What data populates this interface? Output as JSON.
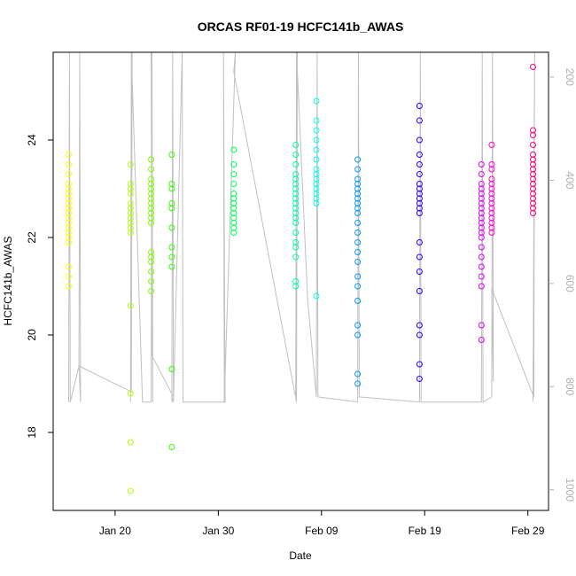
{
  "chart_data": {
    "type": "scatter",
    "title": "ORCAS RF01-19 HCFC141b_AWAS",
    "xlabel": "Date",
    "ylabel": "HCFC141b_AWAS",
    "x_axis_type": "date",
    "xlim": [
      "2016-01-14",
      "2016-03-02"
    ],
    "ylim": [
      16.4,
      25.8
    ],
    "y2lim": [
      1040,
      152
    ],
    "x_ticks": [
      {
        "date": "2016-01-20",
        "label": "Jan 20"
      },
      {
        "date": "2016-01-30",
        "label": "Jan 30"
      },
      {
        "date": "2016-02-09",
        "label": "Feb 09"
      },
      {
        "date": "2016-02-19",
        "label": "Feb 19"
      },
      {
        "date": "2016-02-29",
        "label": "Feb 29"
      }
    ],
    "y_ticks": [
      18,
      20,
      22,
      24
    ],
    "y2_ticks": [
      200,
      400,
      600,
      800,
      1000
    ],
    "grid": false,
    "colors": {
      "axis": "#000000",
      "right_axis": "#b0b0b0",
      "pressure_trace": "#c0c0c0"
    },
    "series": [
      {
        "date": "2016-01-15",
        "color": "#ffff00",
        "values": [
          23.7,
          23.5,
          23.3,
          23.1,
          23.0,
          22.9,
          22.8,
          22.7,
          22.6,
          22.5,
          22.4,
          22.3,
          22.2,
          22.1,
          22.0,
          21.9,
          21.4,
          21.2,
          21.0,
          22.6
        ]
      },
      {
        "date": "2016-01-21",
        "color": "#b3ff00",
        "values": [
          23.5,
          23.1,
          23.0,
          22.9,
          22.7,
          22.6,
          22.5,
          22.4,
          22.3,
          22.2,
          22.1,
          20.6,
          18.8,
          17.8,
          16.8
        ]
      },
      {
        "date": "2016-01-23",
        "color": "#80ff00",
        "values": [
          23.6,
          23.4,
          23.2,
          23.1,
          23.0,
          22.9,
          22.8,
          22.7,
          22.6,
          22.5,
          22.4,
          22.3,
          21.7,
          21.6,
          21.5,
          21.3,
          21.1,
          20.9
        ]
      },
      {
        "date": "2016-01-25",
        "color": "#33ff00",
        "values": [
          23.7,
          23.1,
          23.0,
          22.7,
          22.6,
          22.2,
          21.8,
          21.6,
          21.4,
          19.3,
          17.7
        ]
      },
      {
        "date": "2016-01-31",
        "color": "#00ff55",
        "values": [
          23.8,
          23.5,
          23.3,
          23.1,
          22.9,
          22.8,
          22.7,
          22.6,
          22.5,
          22.4,
          22.3,
          22.2,
          22.1
        ]
      },
      {
        "date": "2016-02-06",
        "color": "#00ffaa",
        "values": [
          23.9,
          23.7,
          23.5,
          23.3,
          23.2,
          23.1,
          23.0,
          22.9,
          22.8,
          22.7,
          22.6,
          22.5,
          22.4,
          22.3,
          22.1,
          21.9,
          21.8,
          21.6,
          21.1,
          21.0
        ]
      },
      {
        "date": "2016-02-08",
        "color": "#00ffee",
        "values": [
          24.8,
          24.4,
          24.2,
          24.0,
          23.8,
          23.6,
          23.4,
          23.3,
          23.2,
          23.1,
          23.0,
          22.9,
          22.8,
          22.7,
          20.8
        ]
      },
      {
        "date": "2016-02-12",
        "color": "#0099ff",
        "values": [
          23.6,
          23.4,
          23.2,
          23.1,
          23.0,
          22.9,
          22.8,
          22.7,
          22.6,
          22.5,
          22.3,
          22.1,
          21.9,
          21.7,
          21.5,
          21.2,
          21.0,
          20.7,
          20.2,
          20.0,
          19.2,
          19.0
        ]
      },
      {
        "date": "2016-02-18",
        "color": "#2200ff",
        "values": [
          24.7,
          24.4,
          24.0,
          23.7,
          23.5,
          23.3,
          23.1,
          23.0,
          22.9,
          22.8,
          22.7,
          22.6,
          22.5,
          21.9,
          21.6,
          21.3,
          20.9,
          20.2,
          20.0,
          19.4,
          19.1
        ]
      },
      {
        "date": "2016-02-24",
        "color": "#dd00ff",
        "values": [
          23.5,
          23.3,
          23.1,
          23.0,
          22.9,
          22.8,
          22.7,
          22.6,
          22.5,
          22.4,
          22.3,
          22.2,
          22.1,
          22.0,
          21.8,
          21.6,
          21.4,
          21.2,
          21.0,
          20.2,
          19.9
        ]
      },
      {
        "date": "2016-02-25",
        "color": "#ff00cc",
        "values": [
          23.9,
          23.5,
          23.4,
          23.2,
          23.1,
          23.0,
          22.9,
          22.8,
          22.7,
          22.6,
          22.5,
          22.4,
          22.3,
          22.2,
          22.1
        ]
      },
      {
        "date": "2016-02-29",
        "color": "#ff0080",
        "values": [
          25.5,
          24.2,
          24.1,
          23.9,
          23.7,
          23.6,
          23.5,
          23.4,
          23.3,
          23.2,
          23.1,
          23.0,
          22.9,
          22.8,
          22.7,
          22.6,
          22.5
        ]
      }
    ],
    "pressure_trace": {
      "color": "#c0c0c0",
      "points": [
        [
          "2016-01-15",
          830
        ],
        [
          "2016-01-15",
          152
        ],
        [
          "2016-01-15",
          830
        ],
        [
          "2016-01-16",
          760
        ],
        [
          "2016-01-16",
          152
        ],
        [
          "2016-01-16",
          830
        ],
        [
          "2016-01-16",
          760
        ],
        [
          "2016-01-21",
          810
        ],
        [
          "2016-01-21",
          152
        ],
        [
          "2016-01-21",
          830
        ],
        [
          "2016-01-21",
          152
        ],
        [
          "2016-01-22",
          830
        ],
        [
          "2016-01-23",
          830
        ],
        [
          "2016-01-23",
          152
        ],
        [
          "2016-01-23",
          830
        ],
        [
          "2016-01-23",
          152
        ],
        [
          "2016-01-23",
          740
        ],
        [
          "2016-01-25",
          820
        ],
        [
          "2016-01-25",
          830
        ],
        [
          "2016-01-25",
          152
        ],
        [
          "2016-01-25",
          830
        ],
        [
          "2016-01-26",
          152
        ],
        [
          "2016-01-26",
          830
        ],
        [
          "2016-01-30",
          830
        ],
        [
          "2016-01-30",
          152
        ],
        [
          "2016-01-30",
          830
        ],
        [
          "2016-01-31",
          152
        ],
        [
          "2016-01-31",
          190
        ],
        [
          "2016-02-06",
          830
        ],
        [
          "2016-02-06",
          152
        ],
        [
          "2016-02-06",
          820
        ],
        [
          "2016-02-06",
          152
        ],
        [
          "2016-02-07",
          630
        ],
        [
          "2016-02-08",
          820
        ],
        [
          "2016-02-08",
          152
        ],
        [
          "2016-02-08",
          820
        ],
        [
          "2016-02-12",
          830
        ],
        [
          "2016-02-12",
          152
        ],
        [
          "2016-02-12",
          820
        ],
        [
          "2016-02-18",
          830
        ],
        [
          "2016-02-18",
          152
        ],
        [
          "2016-02-18",
          830
        ],
        [
          "2016-02-24",
          830
        ],
        [
          "2016-02-24",
          152
        ],
        [
          "2016-02-24",
          830
        ],
        [
          "2016-02-25",
          820
        ],
        [
          "2016-02-25",
          152
        ],
        [
          "2016-02-25",
          790
        ],
        [
          "2016-02-25",
          610
        ],
        [
          "2016-02-29",
          820
        ],
        [
          "2016-02-29",
          152
        ],
        [
          "2016-02-29",
          830
        ]
      ]
    }
  }
}
